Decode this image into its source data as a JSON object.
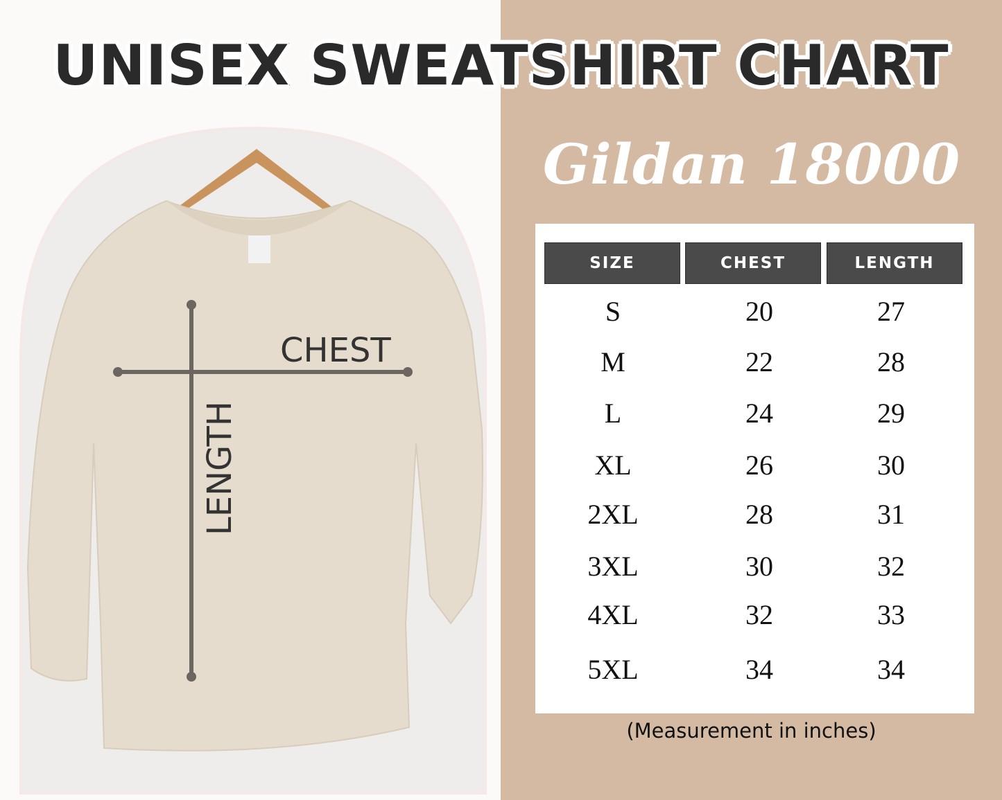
{
  "title": "UNISEX SWEATSHIRT CHART",
  "subtitle": "Gildan 18000",
  "diagram": {
    "chest_label": "CHEST",
    "length_label": "LENGTH"
  },
  "table": {
    "headers": [
      "SIZE",
      "CHEST",
      "LENGTH"
    ],
    "rows": [
      [
        "S",
        "20",
        "27"
      ],
      [
        "M",
        "22",
        "28"
      ],
      [
        "L",
        "24",
        "29"
      ],
      [
        "XL",
        "26",
        "30"
      ],
      [
        "2XL",
        "28",
        "31"
      ],
      [
        "3XL",
        "30",
        "32"
      ],
      [
        "4XL",
        "32",
        "33"
      ],
      [
        "5XL",
        "34",
        "34"
      ]
    ]
  },
  "note": "(Measurement in inches)",
  "colors": {
    "panel": "#d4baa2",
    "header_cell": "#4a4a4a",
    "sweatshirt": "#e6dccd",
    "measure_line": "#6b6660"
  }
}
